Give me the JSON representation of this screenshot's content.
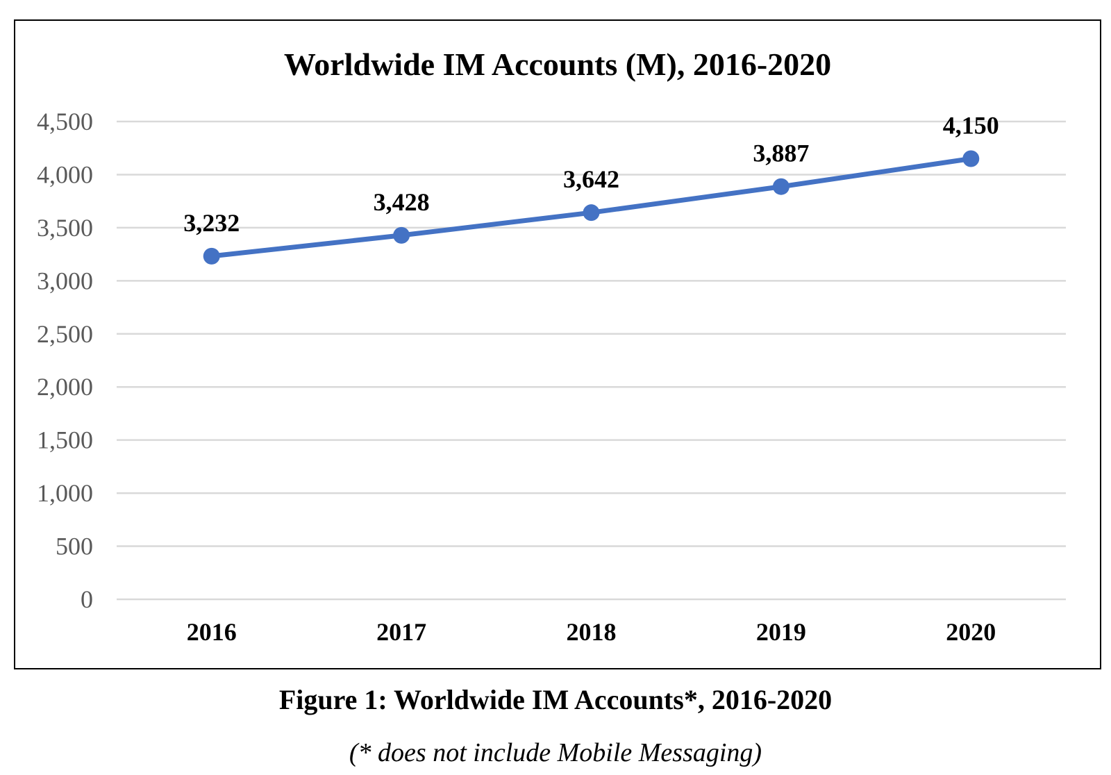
{
  "chart_data": {
    "type": "line",
    "title": "Worldwide IM Accounts (M), 2016-2020",
    "xlabel": "",
    "ylabel": "",
    "categories": [
      "2016",
      "2017",
      "2018",
      "2019",
      "2020"
    ],
    "values": [
      3232,
      3428,
      3642,
      3887,
      4150
    ],
    "data_labels": [
      "3,232",
      "3,428",
      "3,642",
      "3,887",
      "4,150"
    ],
    "ylim": [
      0,
      4500
    ],
    "y_ticks": [
      0,
      500,
      1000,
      1500,
      2000,
      2500,
      3000,
      3500,
      4000,
      4500
    ],
    "y_tick_labels": [
      "0",
      "500",
      "1,000",
      "1,500",
      "2,000",
      "2,500",
      "3,000",
      "3,500",
      "4,000",
      "4,500"
    ],
    "grid": true,
    "legend": "none",
    "colors": {
      "line": "#4472C4",
      "grid": "#D9D9D9",
      "text": "#000000",
      "tick_text": "#595959"
    }
  },
  "figure": {
    "caption": "Figure 1: Worldwide IM Accounts*, 2016-2020",
    "note": "(* does not include Mobile Messaging)"
  }
}
